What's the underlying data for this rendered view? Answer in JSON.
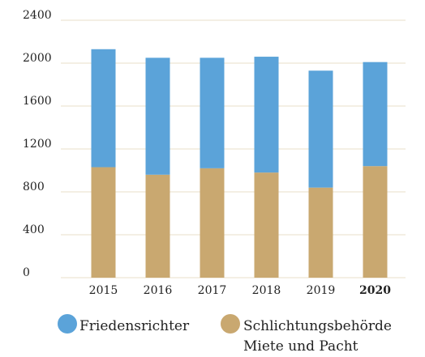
{
  "chart_data": {
    "type": "stacked_bar",
    "categories": [
      "2015",
      "2016",
      "2017",
      "2018",
      "2019",
      "2020"
    ],
    "series": [
      {
        "name": "Schlichtungsbehörde Miete und Pacht",
        "color": "#c9a870",
        "values": [
          1030,
          960,
          1020,
          980,
          840,
          1040
        ]
      },
      {
        "name": "Friedensrichter",
        "color": "#5ba3d9",
        "values": [
          1100,
          1090,
          1030,
          1080,
          1090,
          970
        ]
      }
    ],
    "ylim": [
      0,
      2400
    ],
    "yticks": [
      0,
      400,
      800,
      1200,
      1600,
      2000,
      2400
    ],
    "grid": true
  }
}
